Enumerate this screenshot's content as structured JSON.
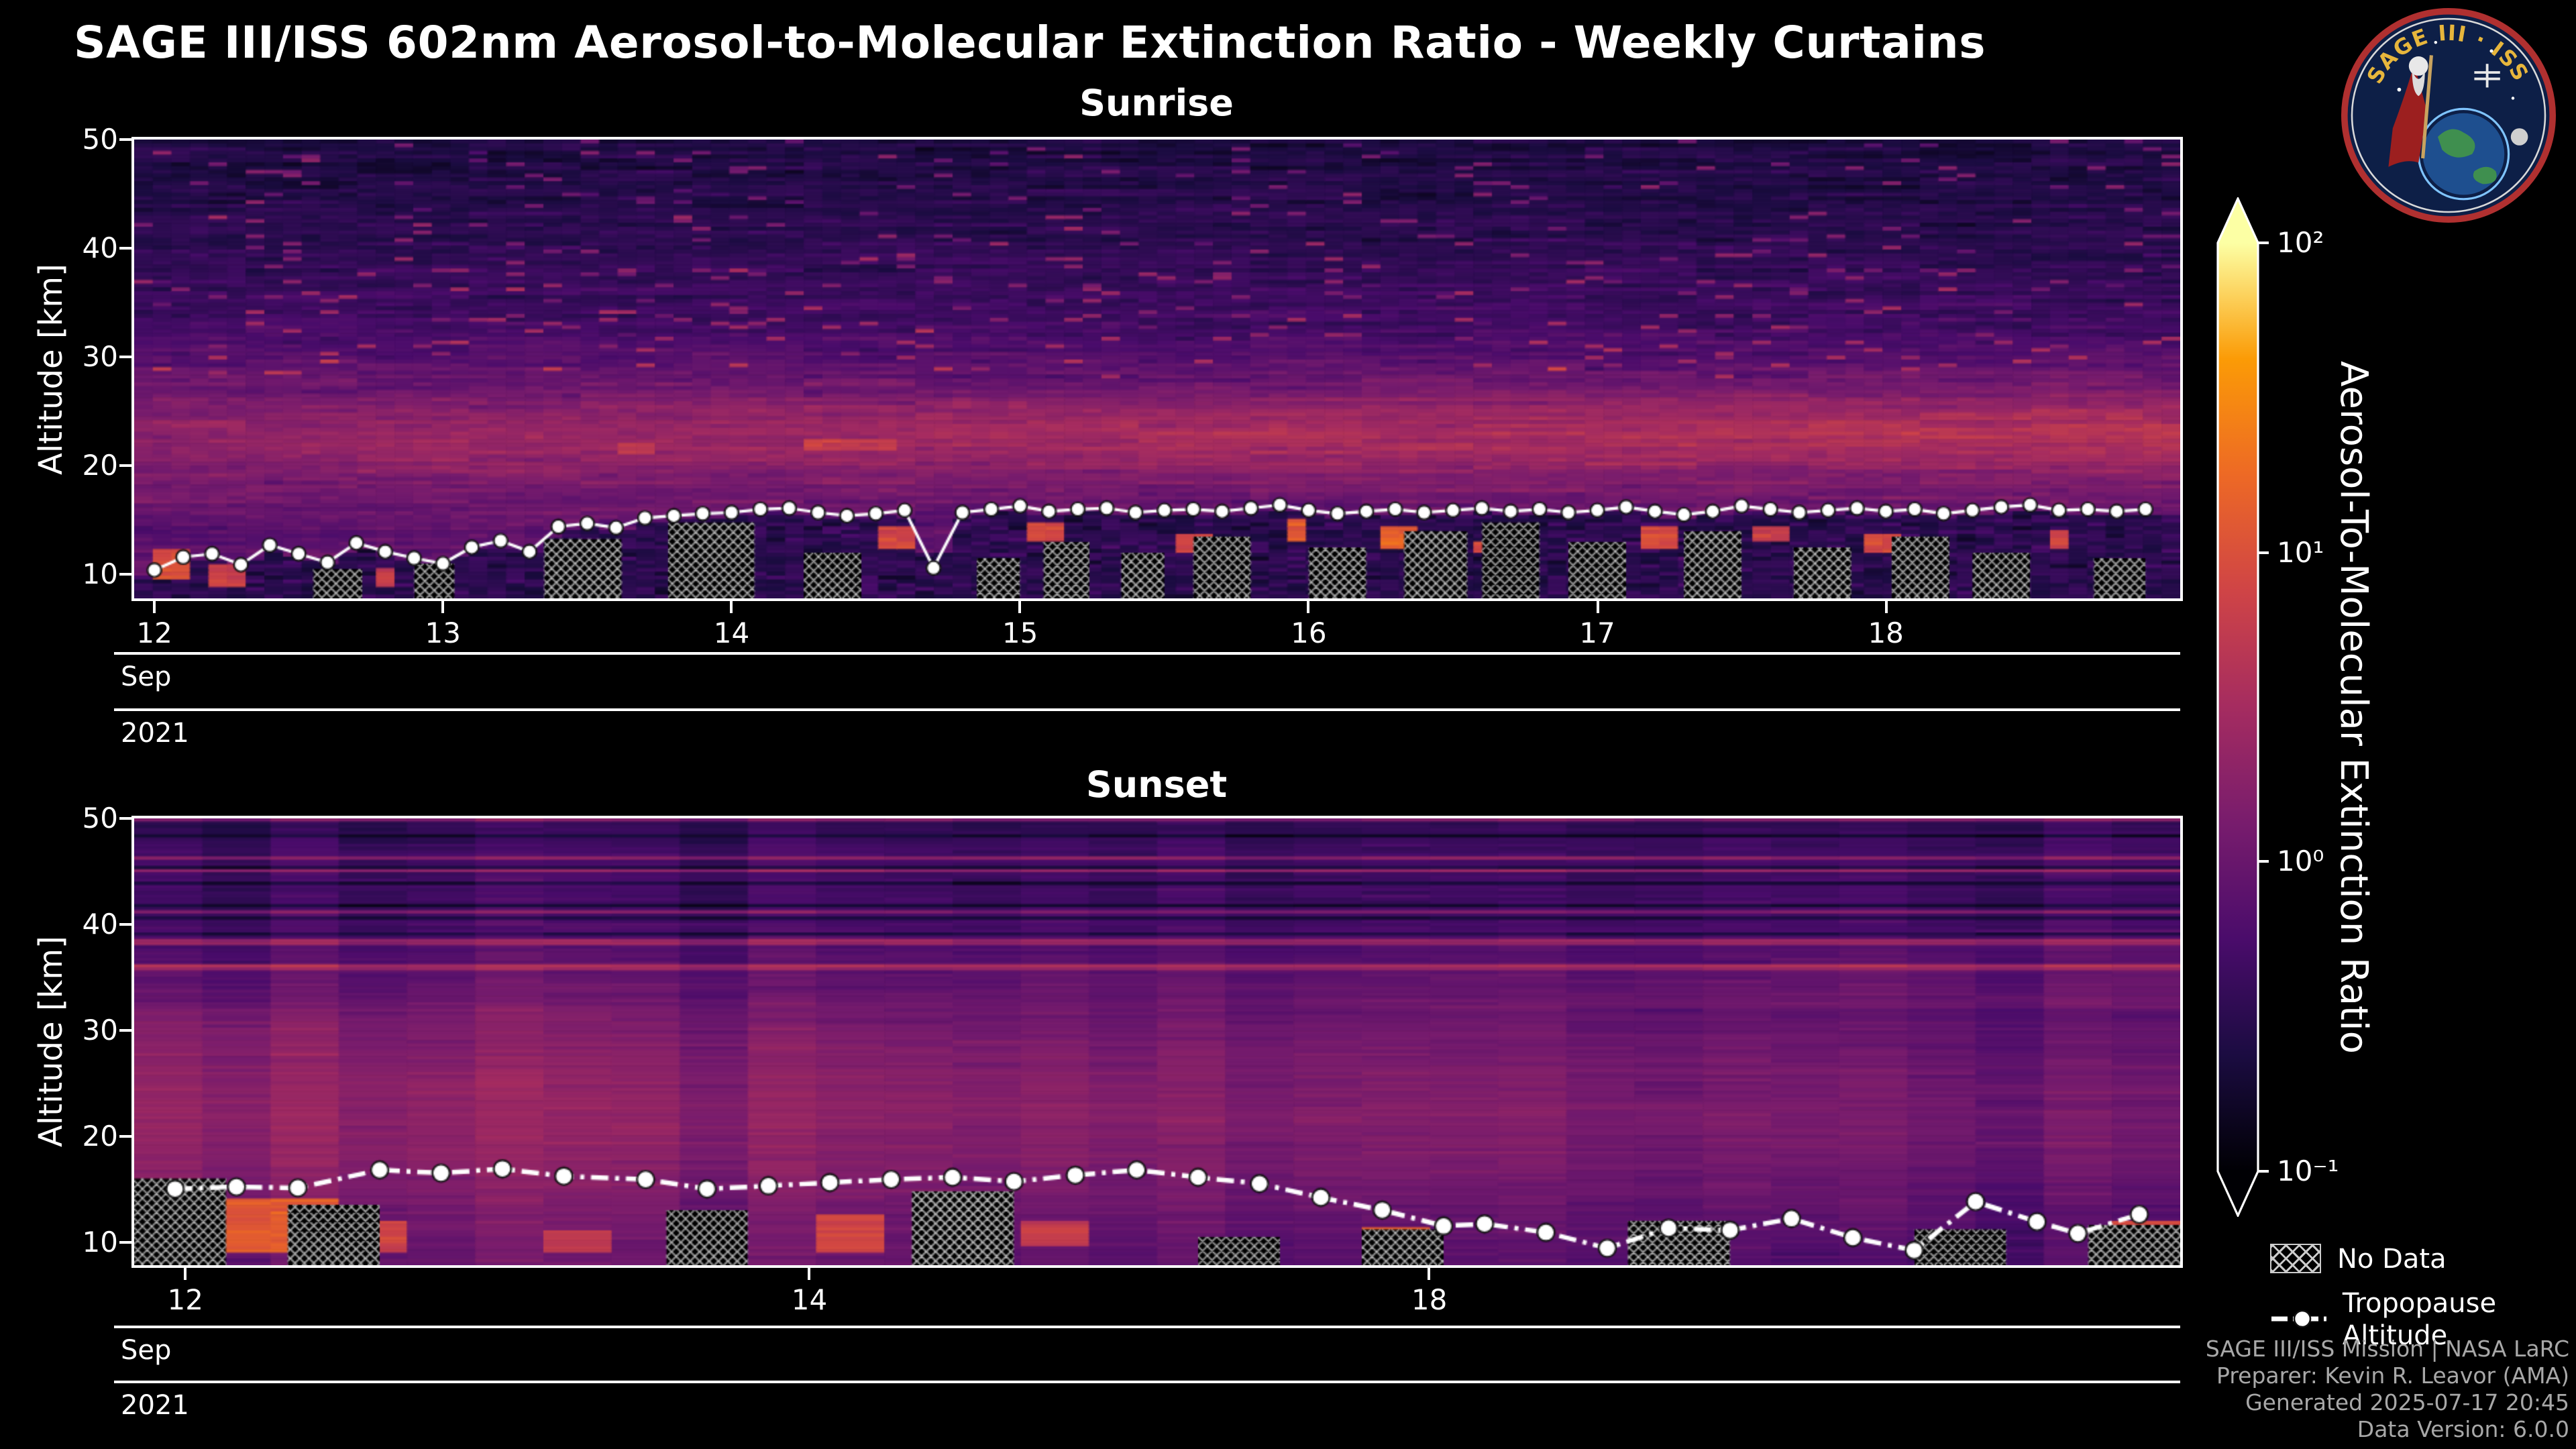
{
  "page": {
    "title": "SAGE III/ISS 602nm Aerosol-to-Molecular Extinction Ratio - Weekly Curtains",
    "background": "#000000",
    "logo": {
      "text_top": "SAGE III · ISS"
    }
  },
  "date_axis": {
    "month": "Sep",
    "year": "2021"
  },
  "colorbar": {
    "label": "Aerosol-To-Molecular Extinction Ratio",
    "scale": "log",
    "range": [
      0.1,
      100
    ],
    "ticks": [
      "10²",
      "10¹",
      "10⁰",
      "10⁻¹"
    ],
    "colormap": "inferno",
    "colormap_stops": [
      "#000004",
      "#1b0c41",
      "#4a0c6b",
      "#781c6d",
      "#a52c60",
      "#cf4446",
      "#ed6925",
      "#fb9b06",
      "#fcffa4"
    ]
  },
  "legend": {
    "no_data": "No Data",
    "tropopause": "Tropopause Altitude"
  },
  "credits": [
    "SAGE III/ISS Mission | NASA LaRC",
    "Preparer: Kevin R. Leavor (AMA)",
    "Generated 2025-07-17 20:45",
    "Data Version: 6.0.0"
  ],
  "chart_data": [
    {
      "type": "heatmap",
      "title": "Sunrise",
      "ylabel": "Altitude [km]",
      "y_range": [
        7.8,
        50
      ],
      "y_ticks": [
        10,
        20,
        30,
        40,
        50
      ],
      "x_mode": "days",
      "x_range": [
        11.93,
        19.02
      ],
      "x_ticks": [
        {
          "label": "12",
          "pos": 12
        },
        {
          "label": "13",
          "pos": 13
        },
        {
          "label": "14",
          "pos": 14
        },
        {
          "label": "15",
          "pos": 15
        },
        {
          "label": "16",
          "pos": 16
        },
        {
          "label": "17",
          "pos": 17
        },
        {
          "label": "18",
          "pos": 18
        }
      ],
      "value_scale": "log",
      "value_range": [
        0.1,
        100
      ],
      "columns": 110,
      "alt_step": 0.35,
      "mask_below_tropo": true,
      "altitude_profile": [
        [
          9,
          0.8
        ],
        [
          11,
          0.9
        ],
        [
          13,
          0.75
        ],
        [
          15,
          0.85
        ],
        [
          17,
          1.1
        ],
        [
          19,
          1.5
        ],
        [
          21,
          2.3
        ],
        [
          23,
          2.6
        ],
        [
          25,
          1.9
        ],
        [
          27,
          1.1
        ],
        [
          30,
          0.7
        ],
        [
          33,
          0.5
        ],
        [
          36,
          0.42
        ],
        [
          40,
          0.33
        ],
        [
          45,
          0.28
        ],
        [
          50,
          0.24
        ]
      ],
      "band_boost": {
        "center": 23,
        "sigma": 3.2,
        "gain_left": 0.75,
        "gain_right": 1.75
      },
      "noise": {
        "seed": 91221,
        "row_sigma": 0.2,
        "cell_sigma": 0.16,
        "streak_prob": 0.05,
        "streak_alt_min": 28,
        "chunk": 6
      },
      "below": {
        "base": 0.32,
        "sigma": 0.35
      },
      "tropopause": {
        "start": 12.0,
        "step": 0.1,
        "line": "solid",
        "marker_size": 5.2,
        "alt": [
          10.4,
          11.6,
          11.9,
          10.9,
          12.7,
          11.9,
          11.1,
          12.9,
          12.1,
          11.5,
          11.0,
          12.5,
          13.1,
          12.1,
          14.4,
          14.7,
          14.3,
          15.2,
          15.4,
          15.6,
          15.7,
          16.0,
          16.1,
          15.7,
          15.4,
          15.6,
          15.9,
          10.6,
          15.7,
          16.0,
          16.3,
          15.8,
          16.0,
          16.1,
          15.7,
          15.9,
          16.0,
          15.8,
          16.1,
          16.4,
          15.9,
          15.6,
          15.8,
          16.0,
          15.7,
          15.9,
          16.1,
          15.8,
          16.0,
          15.7,
          15.9,
          16.2,
          15.8,
          15.5,
          15.8,
          16.3,
          16.0,
          15.7,
          15.9,
          16.1,
          15.8,
          16.0,
          15.6,
          15.9,
          16.2,
          16.4,
          15.9,
          16.0,
          15.8,
          16.0
        ]
      },
      "no_data_blocks": [
        [
          12.55,
          12.72,
          10.5
        ],
        [
          12.9,
          13.04,
          11.0
        ],
        [
          13.35,
          13.62,
          13.3
        ],
        [
          13.78,
          14.08,
          14.8
        ],
        [
          14.25,
          14.45,
          12.0
        ],
        [
          14.85,
          15.0,
          11.5
        ],
        [
          15.08,
          15.24,
          13.0
        ],
        [
          15.35,
          15.5,
          12.0
        ],
        [
          15.6,
          15.8,
          13.5
        ],
        [
          16.0,
          16.2,
          12.5
        ],
        [
          16.33,
          16.55,
          14.0
        ],
        [
          16.6,
          16.8,
          14.8
        ],
        [
          16.9,
          17.1,
          13.0
        ],
        [
          17.3,
          17.5,
          14.0
        ],
        [
          17.68,
          17.88,
          12.5
        ],
        [
          18.02,
          18.22,
          13.5
        ],
        [
          18.3,
          18.5,
          12.0
        ],
        [
          18.72,
          18.9,
          11.5
        ]
      ],
      "hotspots": [
        [
          12.0,
          12.14,
          9.5,
          12.5,
          10
        ],
        [
          12.18,
          12.3,
          9.0,
          11.0,
          7
        ],
        [
          12.75,
          12.86,
          9.0,
          10.5,
          6
        ],
        [
          13.62,
          13.74,
          21.0,
          22.2,
          5
        ],
        [
          14.28,
          14.55,
          21.4,
          22.6,
          6
        ],
        [
          13.9,
          14.0,
          12.2,
          13.6,
          5
        ],
        [
          14.5,
          14.62,
          12.5,
          14.5,
          9
        ],
        [
          15.05,
          15.15,
          13.0,
          14.8,
          8
        ],
        [
          15.55,
          15.66,
          12.0,
          13.6,
          7
        ],
        [
          15.9,
          16.0,
          13.0,
          15.0,
          12
        ],
        [
          16.25,
          16.36,
          12.5,
          14.5,
          16
        ],
        [
          16.56,
          16.63,
          12.0,
          13.2,
          8
        ],
        [
          17.15,
          17.3,
          12.5,
          14.3,
          9
        ],
        [
          17.55,
          17.66,
          13.0,
          14.5,
          6
        ],
        [
          17.95,
          18.06,
          12.0,
          13.8,
          9
        ],
        [
          18.55,
          18.66,
          12.5,
          14.0,
          7
        ]
      ]
    },
    {
      "type": "heatmap",
      "title": "Sunset",
      "ylabel": "Altitude [km]",
      "y_range": [
        7.8,
        50
      ],
      "y_ticks": [
        10,
        20,
        30,
        40,
        50
      ],
      "x_mode": "fraction",
      "x_ticks": [
        {
          "label": "12",
          "pos": 0.025
        },
        {
          "label": "14",
          "pos": 0.33
        },
        {
          "label": "18",
          "pos": 0.633
        }
      ],
      "value_scale": "log",
      "value_range": [
        0.1,
        100
      ],
      "columns": 30,
      "alt_step": 0.3,
      "mask_below_tropo": false,
      "altitude_profile": [
        [
          9,
          0.9
        ],
        [
          11,
          1.0
        ],
        [
          14,
          1.2
        ],
        [
          18,
          1.6
        ],
        [
          22,
          1.8
        ],
        [
          26,
          1.6
        ],
        [
          30,
          1.3
        ],
        [
          34,
          0.9
        ],
        [
          38,
          0.6
        ],
        [
          42,
          0.45
        ],
        [
          46,
          0.5
        ],
        [
          50,
          0.3
        ]
      ],
      "x_gain": {
        "left": 1.25,
        "right": 0.6,
        "below_alt": 32
      },
      "noise": {
        "seed": 91722,
        "col_sigma": 0.15,
        "row_sigma": 0.1,
        "cell_sigma": 0.1,
        "stripe_prob": 0.18,
        "stripe_alt": 35,
        "chunk": 3
      },
      "below": {
        "base": 0.5,
        "sigma": 0.3
      },
      "tropopause": {
        "line": "dashdot",
        "marker_size": 6.5,
        "x": [
          0.02,
          0.05,
          0.08,
          0.12,
          0.15,
          0.18,
          0.21,
          0.25,
          0.28,
          0.31,
          0.34,
          0.37,
          0.4,
          0.43,
          0.46,
          0.49,
          0.52,
          0.55,
          0.58,
          0.61,
          0.64,
          0.66,
          0.69,
          0.72,
          0.75,
          0.78,
          0.81,
          0.84,
          0.87,
          0.9,
          0.93,
          0.95,
          0.98
        ],
        "alt": [
          15.0,
          15.2,
          15.1,
          16.8,
          16.5,
          16.9,
          16.2,
          15.9,
          15.0,
          15.3,
          15.6,
          15.9,
          16.1,
          15.7,
          16.3,
          16.8,
          16.1,
          15.5,
          14.2,
          13.0,
          11.5,
          11.7,
          10.9,
          9.4,
          11.3,
          11.1,
          12.2,
          10.4,
          9.2,
          13.8,
          11.9,
          10.8,
          12.6
        ]
      },
      "no_data_blocks": [
        [
          0.0,
          0.045,
          16.0
        ],
        [
          0.075,
          0.12,
          13.5
        ],
        [
          0.26,
          0.3,
          13.0
        ],
        [
          0.38,
          0.43,
          14.8
        ],
        [
          0.52,
          0.56,
          10.5
        ],
        [
          0.6,
          0.64,
          11.2
        ],
        [
          0.73,
          0.78,
          12.0
        ],
        [
          0.87,
          0.915,
          11.2
        ],
        [
          0.955,
          1.0,
          11.6
        ]
      ],
      "hotspots": [
        [
          0.0,
          0.04,
          9.0,
          16.0,
          9
        ],
        [
          0.05,
          0.095,
          9.0,
          14.0,
          13
        ],
        [
          0.1,
          0.13,
          9.0,
          12.0,
          7
        ],
        [
          0.2,
          0.235,
          9.0,
          11.0,
          5
        ],
        [
          0.32,
          0.36,
          9.0,
          12.5,
          8
        ],
        [
          0.44,
          0.47,
          9.5,
          12.0,
          6
        ],
        [
          0.6,
          0.635,
          9.5,
          11.5,
          11
        ],
        [
          0.74,
          0.77,
          9.0,
          10.5,
          5
        ],
        [
          0.96,
          1.0,
          9.5,
          12.0,
          9
        ]
      ]
    }
  ]
}
